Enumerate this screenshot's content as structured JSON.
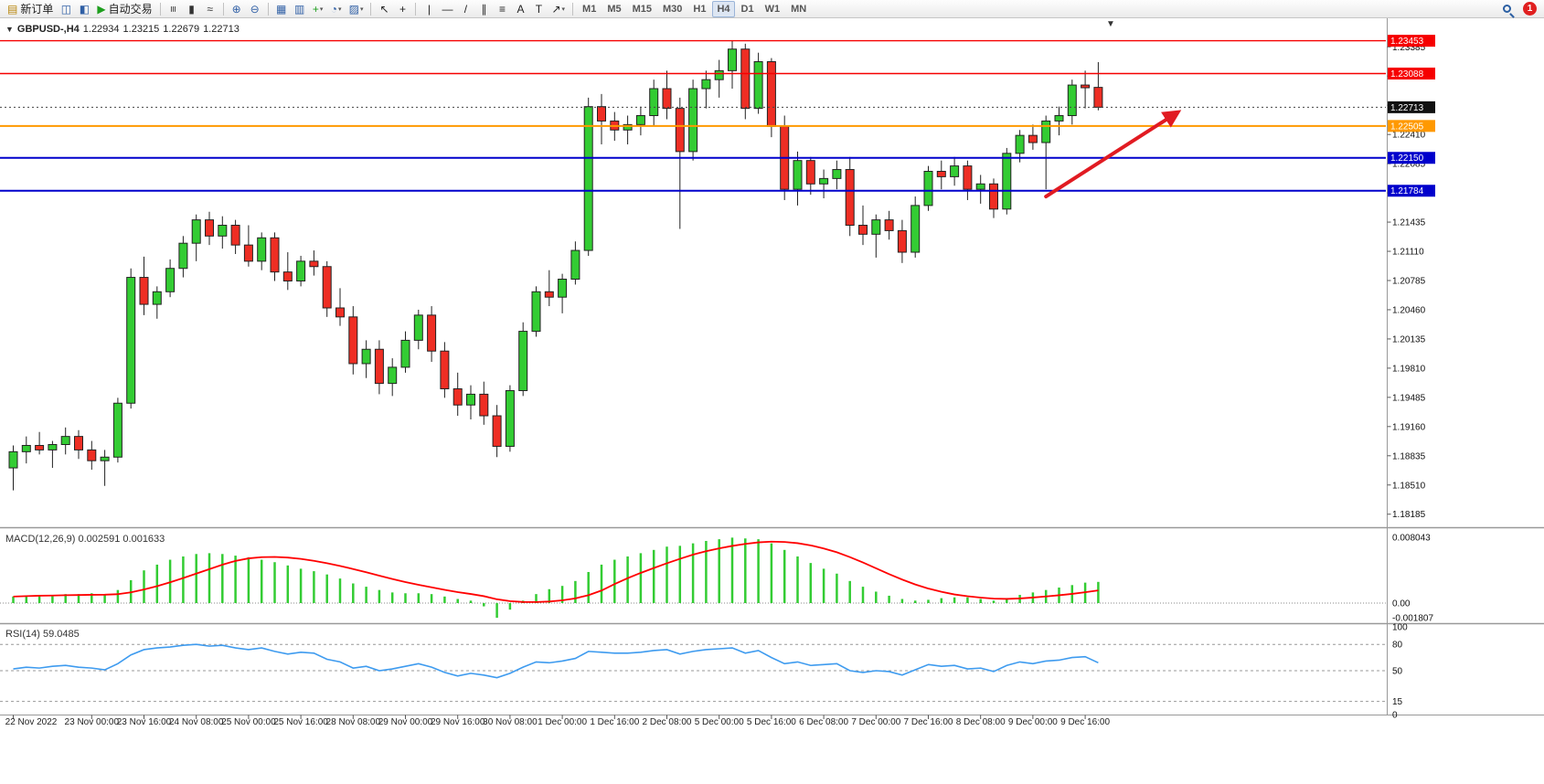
{
  "window": {
    "notification_count": "1"
  },
  "toolbar": {
    "groups": [
      {
        "name": "trade",
        "items": [
          {
            "name": "new-order",
            "glyph": "▤",
            "color": "#b8860b",
            "label": "新订单"
          },
          {
            "name": "charts-window",
            "glyph": "◫",
            "color": "#2f5fa5"
          },
          {
            "name": "market-watch",
            "glyph": "◧",
            "color": "#2f5fa5"
          },
          {
            "name": "auto-trading",
            "glyph": "▶",
            "color": "#1d9e1d",
            "label": "自动交易"
          }
        ]
      },
      {
        "name": "chart-type",
        "items": [
          {
            "name": "bar-chart",
            "glyph": "≡",
            "color": "#333",
            "rot": true
          },
          {
            "name": "candlestick-chart",
            "glyph": "▮",
            "color": "#333"
          },
          {
            "name": "line-chart",
            "glyph": "≈",
            "color": "#333"
          }
        ]
      },
      {
        "name": "zoom",
        "items": [
          {
            "name": "zoom-in",
            "glyph": "⊕",
            "color": "#2f5fa5"
          },
          {
            "name": "zoom-out",
            "glyph": "⊖",
            "color": "#2f5fa5"
          }
        ]
      },
      {
        "name": "windows",
        "items": [
          {
            "name": "tile-windows",
            "glyph": "▦",
            "color": "#2f5fa5"
          },
          {
            "name": "auto-arrange",
            "glyph": "▥",
            "color": "#2f5fa5"
          },
          {
            "name": "new-chart",
            "glyph": "+",
            "color": "#1d9e1d",
            "dd": true
          },
          {
            "name": "period-selector",
            "glyph": "◔",
            "color": "#2f5fa5",
            "dd": true
          },
          {
            "name": "template-selector",
            "glyph": "▨",
            "color": "#2f5fa5",
            "dd": true
          }
        ]
      },
      {
        "name": "pointer",
        "items": [
          {
            "name": "cursor",
            "glyph": "↖",
            "color": "#222"
          },
          {
            "name": "crosshair",
            "glyph": "+",
            "color": "#222"
          }
        ]
      },
      {
        "name": "drawing",
        "items": [
          {
            "name": "vertical-line",
            "glyph": "|",
            "color": "#222"
          },
          {
            "name": "horizontal-line",
            "glyph": "—",
            "color": "#222"
          },
          {
            "name": "trendline",
            "glyph": "/",
            "color": "#222"
          },
          {
            "name": "equidistant-channel",
            "glyph": "∥",
            "color": "#222"
          },
          {
            "name": "fibonacci-retracement",
            "glyph": "≡",
            "color": "#222"
          },
          {
            "name": "text",
            "glyph": "A",
            "color": "#222"
          },
          {
            "name": "text-label",
            "glyph": "T",
            "color": "#222"
          },
          {
            "name": "arrow-tool",
            "glyph": "↗",
            "color": "#222",
            "dd": true
          }
        ]
      },
      {
        "name": "timeframes",
        "items": [
          {
            "name": "tf-m1",
            "label": "M1"
          },
          {
            "name": "tf-m5",
            "label": "M5"
          },
          {
            "name": "tf-m15",
            "label": "M15"
          },
          {
            "name": "tf-m30",
            "label": "M30"
          },
          {
            "name": "tf-h1",
            "label": "H1"
          },
          {
            "name": "tf-h4",
            "label": "H4",
            "active": true
          },
          {
            "name": "tf-d1",
            "label": "D1"
          },
          {
            "name": "tf-w1",
            "label": "W1"
          },
          {
            "name": "tf-mn",
            "label": "MN"
          }
        ]
      }
    ]
  },
  "chart": {
    "symbol_period": "GBPUSD-,H4",
    "open": "1.22934",
    "high": "1.23215",
    "low": "1.22679",
    "close": "1.22713",
    "dropdown_glyph": "▼",
    "shift_marker_glyph": "▼"
  },
  "chart_data": {
    "type": "candlestick",
    "symbol": "GBPUSD-",
    "timeframe": "H4",
    "price_range": {
      "max": 1.2352,
      "min": 1.1805
    },
    "price_axis_ticks": [
      "1.23385",
      "1.23060",
      "1.22735",
      "1.22410",
      "1.22085",
      "1.21760",
      "1.21435",
      "1.21110",
      "1.20785",
      "1.20460",
      "1.20135",
      "1.19810",
      "1.19485",
      "1.19160",
      "1.18835",
      "1.18510",
      "1.18185"
    ],
    "colors": {
      "up": "#33cc33",
      "down": "#ee2e24",
      "outline": "#222222"
    },
    "candles": [
      [
        1.187,
        1.1895,
        1.1845,
        1.1888
      ],
      [
        1.1888,
        1.1905,
        1.1875,
        1.1895
      ],
      [
        1.1895,
        1.191,
        1.1885,
        1.189
      ],
      [
        1.189,
        1.19,
        1.187,
        1.1896
      ],
      [
        1.1896,
        1.1915,
        1.1885,
        1.1905
      ],
      [
        1.1905,
        1.1912,
        1.188,
        1.189
      ],
      [
        1.189,
        1.19,
        1.1868,
        1.1878
      ],
      [
        1.1878,
        1.189,
        1.185,
        1.1882
      ],
      [
        1.1882,
        1.1948,
        1.1876,
        1.1942
      ],
      [
        1.1942,
        1.2092,
        1.1936,
        1.2082
      ],
      [
        1.2082,
        1.2105,
        1.204,
        1.2052
      ],
      [
        1.2052,
        1.2072,
        1.2036,
        1.2066
      ],
      [
        1.2066,
        1.2102,
        1.206,
        1.2092
      ],
      [
        1.2092,
        1.2128,
        1.2082,
        1.212
      ],
      [
        1.212,
        1.2152,
        1.21,
        1.2146
      ],
      [
        1.2146,
        1.2155,
        1.2118,
        1.2128
      ],
      [
        1.2128,
        1.215,
        1.2114,
        1.214
      ],
      [
        1.214,
        1.2146,
        1.2108,
        1.2118
      ],
      [
        1.2118,
        1.214,
        1.2094,
        1.21
      ],
      [
        1.21,
        1.2132,
        1.209,
        1.2126
      ],
      [
        1.2126,
        1.2132,
        1.2078,
        1.2088
      ],
      [
        1.2088,
        1.211,
        1.2068,
        1.2078
      ],
      [
        1.2078,
        1.2106,
        1.2072,
        1.21
      ],
      [
        1.21,
        1.2112,
        1.2084,
        1.2094
      ],
      [
        1.2094,
        1.21,
        1.2038,
        1.2048
      ],
      [
        1.2048,
        1.207,
        1.2028,
        1.2038
      ],
      [
        1.2038,
        1.205,
        1.1974,
        1.1986
      ],
      [
        1.1986,
        1.2012,
        1.197,
        1.2002
      ],
      [
        1.2002,
        1.2012,
        1.1952,
        1.1964
      ],
      [
        1.1964,
        1.1992,
        1.195,
        1.1982
      ],
      [
        1.1982,
        1.2022,
        1.1976,
        1.2012
      ],
      [
        1.2012,
        1.2046,
        1.2002,
        1.204
      ],
      [
        1.204,
        1.205,
        1.1988,
        1.2
      ],
      [
        1.2,
        1.201,
        1.1948,
        1.1958
      ],
      [
        1.1958,
        1.1976,
        1.1928,
        1.194
      ],
      [
        1.194,
        1.1962,
        1.1924,
        1.1952
      ],
      [
        1.1952,
        1.1966,
        1.1918,
        1.1928
      ],
      [
        1.1928,
        1.194,
        1.1882,
        1.1894
      ],
      [
        1.1894,
        1.1962,
        1.1888,
        1.1956
      ],
      [
        1.1956,
        1.2032,
        1.195,
        1.2022
      ],
      [
        1.2022,
        1.2072,
        1.2016,
        1.2066
      ],
      [
        1.2066,
        1.209,
        1.205,
        1.206
      ],
      [
        1.206,
        1.2086,
        1.2042,
        1.208
      ],
      [
        1.208,
        1.2122,
        1.2074,
        1.2112
      ],
      [
        1.2112,
        1.2282,
        1.2106,
        1.2272
      ],
      [
        1.2272,
        1.2286,
        1.223,
        1.2256
      ],
      [
        1.2256,
        1.2266,
        1.2234,
        1.2246
      ],
      [
        1.2246,
        1.2262,
        1.223,
        1.2252
      ],
      [
        1.2252,
        1.2272,
        1.224,
        1.2262
      ],
      [
        1.2262,
        1.2302,
        1.225,
        1.2292
      ],
      [
        1.2292,
        1.2312,
        1.2258,
        1.227
      ],
      [
        1.227,
        1.2282,
        1.2136,
        1.2222
      ],
      [
        1.2222,
        1.2302,
        1.2212,
        1.2292
      ],
      [
        1.2292,
        1.2312,
        1.227,
        1.2302
      ],
      [
        1.2302,
        1.2324,
        1.2282,
        1.2312
      ],
      [
        1.2312,
        1.2345,
        1.2292,
        1.2336
      ],
      [
        1.2336,
        1.2342,
        1.2258,
        1.227
      ],
      [
        1.227,
        1.2332,
        1.2264,
        1.2322
      ],
      [
        1.2322,
        1.2326,
        1.2238,
        1.225
      ],
      [
        1.225,
        1.2262,
        1.2168,
        1.218
      ],
      [
        1.218,
        1.2222,
        1.2162,
        1.2212
      ],
      [
        1.2212,
        1.2216,
        1.2174,
        1.2186
      ],
      [
        1.2186,
        1.2202,
        1.217,
        1.2192
      ],
      [
        1.2192,
        1.2212,
        1.218,
        1.2202
      ],
      [
        1.2202,
        1.2216,
        1.2128,
        1.214
      ],
      [
        1.214,
        1.2162,
        1.2118,
        1.213
      ],
      [
        1.213,
        1.2152,
        1.2104,
        1.2146
      ],
      [
        1.2146,
        1.2156,
        1.2124,
        1.2134
      ],
      [
        1.2134,
        1.2146,
        1.2098,
        1.211
      ],
      [
        1.211,
        1.2172,
        1.2104,
        1.2162
      ],
      [
        1.2162,
        1.2206,
        1.2156,
        1.22
      ],
      [
        1.22,
        1.2212,
        1.218,
        1.2194
      ],
      [
        1.2194,
        1.2216,
        1.2184,
        1.2206
      ],
      [
        1.2206,
        1.2212,
        1.2168,
        1.218
      ],
      [
        1.218,
        1.2196,
        1.2164,
        1.2186
      ],
      [
        1.2186,
        1.2192,
        1.2148,
        1.2158
      ],
      [
        1.2158,
        1.2226,
        1.2152,
        1.222
      ],
      [
        1.222,
        1.2246,
        1.221,
        1.224
      ],
      [
        1.224,
        1.2252,
        1.2224,
        1.2232
      ],
      [
        1.2232,
        1.2262,
        1.218,
        1.2256
      ],
      [
        1.2256,
        1.2272,
        1.224,
        1.2262
      ],
      [
        1.2262,
        1.2302,
        1.2252,
        1.2296
      ],
      [
        1.2296,
        1.2312,
        1.227,
        1.2293
      ],
      [
        1.22934,
        1.23215,
        1.22679,
        1.22713
      ]
    ],
    "time_labels": [
      {
        "i": 0,
        "t": "22 Nov 2022"
      },
      {
        "i": 6,
        "t": "23 Nov 00:00"
      },
      {
        "i": 10,
        "t": "23 Nov 16:00"
      },
      {
        "i": 14,
        "t": "24 Nov 08:00"
      },
      {
        "i": 18,
        "t": "25 Nov 00:00"
      },
      {
        "i": 22,
        "t": "25 Nov 16:00"
      },
      {
        "i": 26,
        "t": "28 Nov 08:00"
      },
      {
        "i": 30,
        "t": "29 Nov 00:00"
      },
      {
        "i": 34,
        "t": "29 Nov 16:00"
      },
      {
        "i": 38,
        "t": "30 Nov 08:00"
      },
      {
        "i": 42,
        "t": "1 Dec 00:00"
      },
      {
        "i": 46,
        "t": "1 Dec 16:00"
      },
      {
        "i": 50,
        "t": "2 Dec 08:00"
      },
      {
        "i": 54,
        "t": "5 Dec 00:00"
      },
      {
        "i": 58,
        "t": "5 Dec 16:00"
      },
      {
        "i": 62,
        "t": "6 Dec 08:00"
      },
      {
        "i": 66,
        "t": "7 Dec 00:00"
      },
      {
        "i": 70,
        "t": "7 Dec 16:00"
      },
      {
        "i": 74,
        "t": "8 Dec 08:00"
      },
      {
        "i": 78,
        "t": "9 Dec 00:00"
      },
      {
        "i": 82,
        "t": "9 Dec 16:00"
      }
    ],
    "hlines": [
      {
        "price": 1.23453,
        "color": "#f60000",
        "label": "1.23453",
        "width": 1.4
      },
      {
        "price": 1.23088,
        "color": "#f60000",
        "label": "1.23088",
        "width": 1.4
      },
      {
        "price": 1.22505,
        "color": "#ff9900",
        "label": "1.22505",
        "width": 2
      },
      {
        "price": 1.2215,
        "color": "#0000cc",
        "label": "1.22150",
        "width": 2
      },
      {
        "price": 1.21784,
        "color": "#0000cc",
        "label": "1.21784",
        "width": 2
      }
    ],
    "current_price": {
      "value": "1.22713",
      "price": 1.22713,
      "box_color": "#111111"
    },
    "arrow": {
      "from_index": 79,
      "from_price": 1.2172,
      "to_index": 89,
      "to_price": 1.2265,
      "color": "#e11b22"
    },
    "macd": {
      "title": "MACD(12,26,9) 0.002591 0.001633",
      "axis_labels": [
        "0.008043",
        "0.00",
        "-0.001807"
      ],
      "max": 0.008043,
      "min": -0.001807,
      "bar_color": "#33cc33",
      "signal_color": "#ff0000",
      "signal_period": 9,
      "values": [
        0.0008,
        0.0009,
        0.001,
        0.001,
        0.0011,
        0.0011,
        0.0012,
        0.0011,
        0.0016,
        0.0028,
        0.004,
        0.0047,
        0.0053,
        0.0057,
        0.006,
        0.0061,
        0.006,
        0.0058,
        0.0056,
        0.0053,
        0.005,
        0.0046,
        0.0042,
        0.0039,
        0.0035,
        0.003,
        0.0024,
        0.002,
        0.0016,
        0.0013,
        0.0012,
        0.0012,
        0.0011,
        0.0008,
        0.0005,
        0.0003,
        -0.0004,
        -0.0018,
        -0.0008,
        0.0003,
        0.0011,
        0.0017,
        0.0021,
        0.0027,
        0.0038,
        0.0047,
        0.0053,
        0.0057,
        0.0061,
        0.0065,
        0.0069,
        0.007,
        0.0073,
        0.0076,
        0.0078,
        0.008,
        0.0079,
        0.0078,
        0.0073,
        0.0065,
        0.0057,
        0.0049,
        0.0042,
        0.0036,
        0.0027,
        0.002,
        0.0014,
        0.0009,
        0.0005,
        0.0003,
        0.0004,
        0.0006,
        0.0007,
        0.0007,
        0.0005,
        0.0003,
        0.0006,
        0.001,
        0.0013,
        0.0016,
        0.0019,
        0.0022,
        0.0025,
        0.002591
      ]
    },
    "rsi": {
      "title": "RSI(14) 59.0485",
      "axis_labels": [
        100,
        80,
        50,
        15,
        0
      ],
      "levels": [
        80,
        50,
        15
      ],
      "line_color": "#3e9bef",
      "values": [
        52,
        54,
        53,
        55,
        56,
        54,
        53,
        51,
        58,
        68,
        74,
        76,
        77,
        79,
        80,
        78,
        79,
        76,
        74,
        76,
        72,
        69,
        71,
        70,
        63,
        60,
        53,
        55,
        50,
        52,
        55,
        58,
        54,
        48,
        44,
        47,
        45,
        42,
        47,
        54,
        60,
        59,
        61,
        64,
        72,
        71,
        70,
        70,
        71,
        73,
        74,
        69,
        72,
        74,
        75,
        76,
        70,
        73,
        65,
        58,
        60,
        56,
        57,
        58,
        50,
        48,
        50,
        49,
        45,
        51,
        57,
        55,
        56,
        52,
        53,
        49,
        56,
        60,
        58,
        61,
        62,
        65,
        66,
        59.05
      ]
    }
  }
}
